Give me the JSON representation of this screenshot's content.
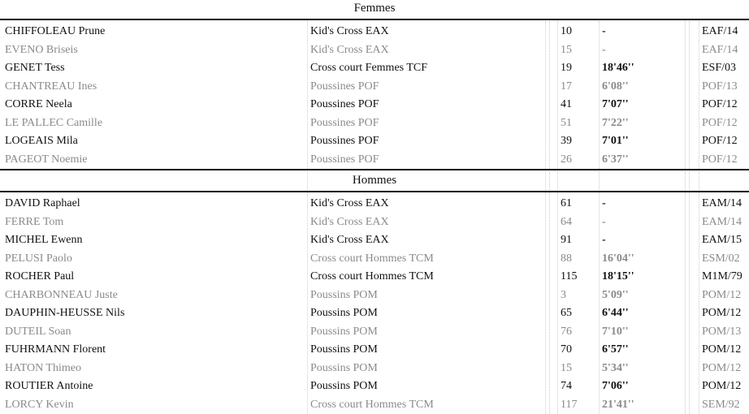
{
  "sections": [
    {
      "title": "Femmes",
      "rows": [
        [
          "CHIFFOLEAU Prune",
          "Kid's Cross EAX",
          10,
          "-",
          "EAF/14"
        ],
        [
          "EVENO Briseis",
          "Kid's Cross EAX",
          15,
          "-",
          "EAF/14"
        ],
        [
          "GENET Tess",
          "Cross court Femmes TCF",
          19,
          "18'46''",
          "ESF/03"
        ],
        [
          "CHANTREAU Ines",
          "Poussines POF",
          17,
          "6'08''",
          "POF/13"
        ],
        [
          "CORRE Neela",
          "Poussines POF",
          41,
          "7'07''",
          "POF/12"
        ],
        [
          "LE PALLEC Camille",
          "Poussines POF",
          51,
          "7'22''",
          "POF/12"
        ],
        [
          "LOGEAIS Mila",
          "Poussines POF",
          39,
          "7'01''",
          "POF/12"
        ],
        [
          "PAGEOT Noemie",
          "Poussines POF",
          26,
          "6'37''",
          "POF/12"
        ]
      ]
    },
    {
      "title": "Hommes",
      "rows": [
        [
          "DAVID Raphael",
          "Kid's Cross EAX",
          61,
          "-",
          "EAM/14"
        ],
        [
          "FERRE Tom",
          "Kid's Cross EAX",
          64,
          "-",
          "EAM/14"
        ],
        [
          "MICHEL Ewenn",
          "Kid's Cross EAX",
          91,
          "-",
          "EAM/15"
        ],
        [
          "PELUSI Paolo",
          "Cross court Hommes TCM",
          88,
          "16'04''",
          "ESM/02"
        ],
        [
          "ROCHER Paul",
          "Cross court Hommes TCM",
          115,
          "18'15''",
          "M1M/79"
        ],
        [
          "CHARBONNEAU Juste",
          "Poussins POM",
          3,
          "5'09''",
          "POM/12"
        ],
        [
          "DAUPHIN-HEUSSE Nils",
          "Poussins POM",
          65,
          "6'44''",
          "POM/12"
        ],
        [
          "DUTEIL Soan",
          "Poussins POM",
          76,
          "7'10''",
          "POM/13"
        ],
        [
          "FUHRMANN Florent",
          "Poussins POM",
          70,
          "6'57''",
          "POM/12"
        ],
        [
          "HATON Thimeo",
          "Poussins POM",
          15,
          "5'34''",
          "POM/12"
        ],
        [
          "ROUTIER Antoine",
          "Poussins POM",
          74,
          "7'06''",
          "POM/12"
        ],
        [
          "LORCY Kevin",
          "Cross court Hommes TCM",
          117,
          "21'41''",
          "SEM/92"
        ]
      ]
    }
  ]
}
